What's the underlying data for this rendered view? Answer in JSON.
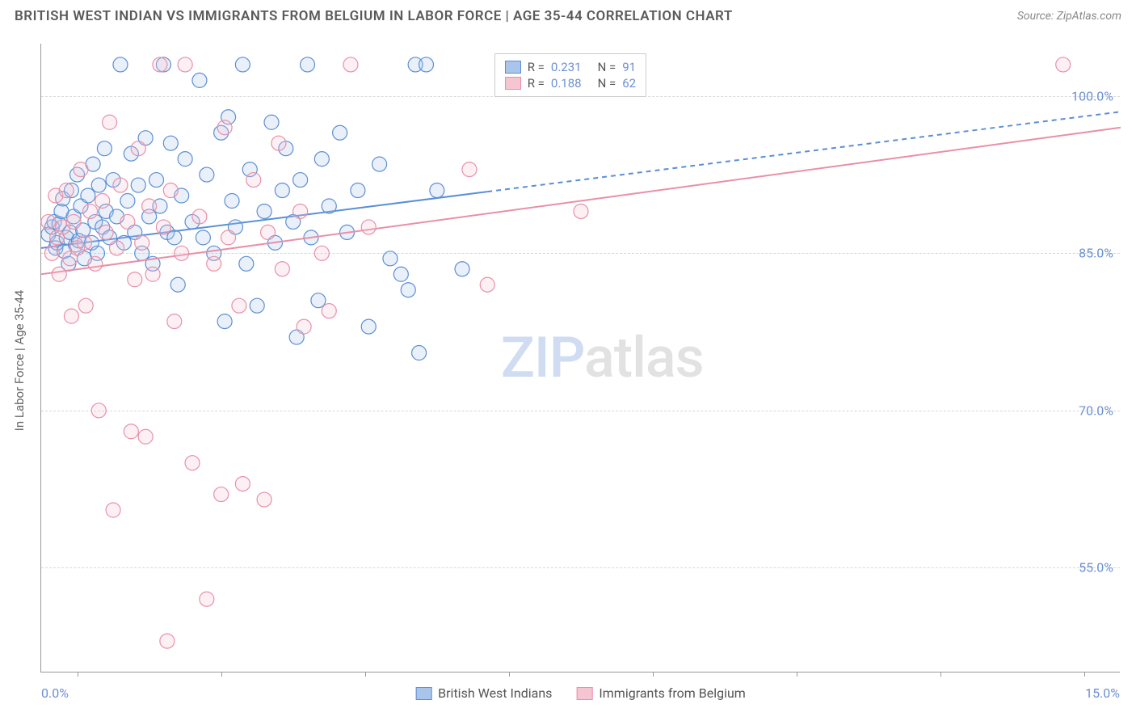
{
  "title": "BRITISH WEST INDIAN VS IMMIGRANTS FROM BELGIUM IN LABOR FORCE | AGE 35-44 CORRELATION CHART",
  "source": "Source: ZipAtlas.com",
  "y_axis_label": "In Labor Force | Age 35-44",
  "watermark_a": "ZIP",
  "watermark_b": "atlas",
  "chart": {
    "type": "scatter",
    "background_color": "#ffffff",
    "grid_color": "#d8d8d8",
    "axis_color": "#999999",
    "label_color": "#6b8fd4",
    "xlim": [
      0,
      15
    ],
    "ylim": [
      45,
      105
    ],
    "x_tick_positions": [
      0.5,
      2.5,
      4.5,
      6.5,
      8.5,
      10.5,
      12.5,
      14.5
    ],
    "x_range_left": "0.0%",
    "x_range_right": "15.0%",
    "y_ticks": [
      {
        "v": 55,
        "label": "55.0%"
      },
      {
        "v": 70,
        "label": "70.0%"
      },
      {
        "v": 85,
        "label": "85.0%"
      },
      {
        "v": 100,
        "label": "100.0%"
      }
    ],
    "marker_radius": 9,
    "marker_stroke_width": 1.2,
    "marker_fill_opacity": 0.25,
    "series": [
      {
        "name": "British West Indians",
        "color_stroke": "#5b8fd6",
        "color_fill": "#a9c5ec",
        "r_value": "0.231",
        "n_value": "91",
        "trend": {
          "x1": 0,
          "y1": 85.5,
          "x2": 15,
          "y2": 98.5,
          "solid_end_x": 6.2,
          "width": 2
        },
        "points": [
          [
            0.1,
            86.8
          ],
          [
            0.15,
            87.5
          ],
          [
            0.18,
            88.0
          ],
          [
            0.2,
            85.5
          ],
          [
            0.22,
            86.0
          ],
          [
            0.25,
            87.8
          ],
          [
            0.28,
            89.0
          ],
          [
            0.3,
            90.2
          ],
          [
            0.32,
            85.2
          ],
          [
            0.35,
            86.5
          ],
          [
            0.38,
            84.0
          ],
          [
            0.4,
            87.0
          ],
          [
            0.42,
            91.0
          ],
          [
            0.45,
            88.5
          ],
          [
            0.48,
            85.8
          ],
          [
            0.5,
            92.5
          ],
          [
            0.52,
            86.2
          ],
          [
            0.55,
            89.5
          ],
          [
            0.58,
            87.2
          ],
          [
            0.6,
            84.5
          ],
          [
            0.65,
            90.5
          ],
          [
            0.7,
            86.0
          ],
          [
            0.72,
            93.5
          ],
          [
            0.75,
            88.0
          ],
          [
            0.78,
            85.0
          ],
          [
            0.8,
            91.5
          ],
          [
            0.85,
            87.5
          ],
          [
            0.88,
            95.0
          ],
          [
            0.9,
            89.0
          ],
          [
            0.95,
            86.5
          ],
          [
            1.0,
            92.0
          ],
          [
            1.05,
            88.5
          ],
          [
            1.1,
            103.0
          ],
          [
            1.15,
            86.0
          ],
          [
            1.2,
            90.0
          ],
          [
            1.25,
            94.5
          ],
          [
            1.3,
            87.0
          ],
          [
            1.35,
            91.5
          ],
          [
            1.4,
            85.0
          ],
          [
            1.45,
            96.0
          ],
          [
            1.5,
            88.5
          ],
          [
            1.55,
            84.0
          ],
          [
            1.6,
            92.0
          ],
          [
            1.65,
            89.5
          ],
          [
            1.7,
            103.0
          ],
          [
            1.75,
            87.0
          ],
          [
            1.8,
            95.5
          ],
          [
            1.85,
            86.5
          ],
          [
            1.9,
            82.0
          ],
          [
            1.95,
            90.5
          ],
          [
            2.0,
            94.0
          ],
          [
            2.1,
            88.0
          ],
          [
            2.2,
            101.5
          ],
          [
            2.25,
            86.5
          ],
          [
            2.3,
            92.5
          ],
          [
            2.4,
            85.0
          ],
          [
            2.5,
            96.5
          ],
          [
            2.55,
            78.5
          ],
          [
            2.6,
            98.0
          ],
          [
            2.65,
            90.0
          ],
          [
            2.7,
            87.5
          ],
          [
            2.8,
            103.0
          ],
          [
            2.85,
            84.0
          ],
          [
            2.9,
            93.0
          ],
          [
            3.0,
            80.0
          ],
          [
            3.1,
            89.0
          ],
          [
            3.2,
            97.5
          ],
          [
            3.25,
            86.0
          ],
          [
            3.35,
            91.0
          ],
          [
            3.4,
            95.0
          ],
          [
            3.5,
            88.0
          ],
          [
            3.55,
            77.0
          ],
          [
            3.6,
            92.0
          ],
          [
            3.7,
            103.0
          ],
          [
            3.75,
            86.5
          ],
          [
            3.85,
            80.5
          ],
          [
            3.9,
            94.0
          ],
          [
            4.0,
            89.5
          ],
          [
            4.15,
            96.5
          ],
          [
            4.25,
            87.0
          ],
          [
            4.4,
            91.0
          ],
          [
            4.55,
            78.0
          ],
          [
            4.7,
            93.5
          ],
          [
            4.85,
            84.5
          ],
          [
            5.0,
            83.0
          ],
          [
            5.1,
            81.5
          ],
          [
            5.2,
            103.0
          ],
          [
            5.25,
            75.5
          ],
          [
            5.35,
            103.0
          ],
          [
            5.5,
            91.0
          ],
          [
            5.85,
            83.5
          ]
        ]
      },
      {
        "name": "Immigrants from Belgium",
        "color_stroke": "#e890a7",
        "color_fill": "#f6c5d2",
        "r_value": "0.188",
        "n_value": "62",
        "trend": {
          "x1": 0,
          "y1": 83.0,
          "x2": 15,
          "y2": 97.0,
          "solid_end_x": 15,
          "width": 2
        },
        "points": [
          [
            0.1,
            88.0
          ],
          [
            0.15,
            85.0
          ],
          [
            0.2,
            90.5
          ],
          [
            0.22,
            86.5
          ],
          [
            0.25,
            83.0
          ],
          [
            0.3,
            87.5
          ],
          [
            0.35,
            91.0
          ],
          [
            0.4,
            84.5
          ],
          [
            0.42,
            79.0
          ],
          [
            0.45,
            88.0
          ],
          [
            0.5,
            85.5
          ],
          [
            0.55,
            93.0
          ],
          [
            0.6,
            86.0
          ],
          [
            0.62,
            80.0
          ],
          [
            0.68,
            89.0
          ],
          [
            0.75,
            84.0
          ],
          [
            0.8,
            70.0
          ],
          [
            0.85,
            90.0
          ],
          [
            0.9,
            87.0
          ],
          [
            0.95,
            97.5
          ],
          [
            1.0,
            60.5
          ],
          [
            1.05,
            85.5
          ],
          [
            1.1,
            91.5
          ],
          [
            1.2,
            88.0
          ],
          [
            1.25,
            68.0
          ],
          [
            1.3,
            82.5
          ],
          [
            1.35,
            95.0
          ],
          [
            1.4,
            86.0
          ],
          [
            1.45,
            67.5
          ],
          [
            1.5,
            89.5
          ],
          [
            1.55,
            83.0
          ],
          [
            1.65,
            103.0
          ],
          [
            1.7,
            87.5
          ],
          [
            1.75,
            48.0
          ],
          [
            1.8,
            91.0
          ],
          [
            1.85,
            78.5
          ],
          [
            1.95,
            85.0
          ],
          [
            2.0,
            103.0
          ],
          [
            2.1,
            65.0
          ],
          [
            2.2,
            88.5
          ],
          [
            2.3,
            52.0
          ],
          [
            2.4,
            84.0
          ],
          [
            2.5,
            62.0
          ],
          [
            2.55,
            97.0
          ],
          [
            2.6,
            86.5
          ],
          [
            2.75,
            80.0
          ],
          [
            2.8,
            63.0
          ],
          [
            2.95,
            92.0
          ],
          [
            3.1,
            61.5
          ],
          [
            3.15,
            87.0
          ],
          [
            3.3,
            95.5
          ],
          [
            3.35,
            83.5
          ],
          [
            3.6,
            89.0
          ],
          [
            3.65,
            78.0
          ],
          [
            3.9,
            85.0
          ],
          [
            4.0,
            79.5
          ],
          [
            4.3,
            103.0
          ],
          [
            4.55,
            87.5
          ],
          [
            5.95,
            93.0
          ],
          [
            6.2,
            82.0
          ],
          [
            7.5,
            89.0
          ],
          [
            14.2,
            103.0
          ]
        ]
      }
    ]
  }
}
